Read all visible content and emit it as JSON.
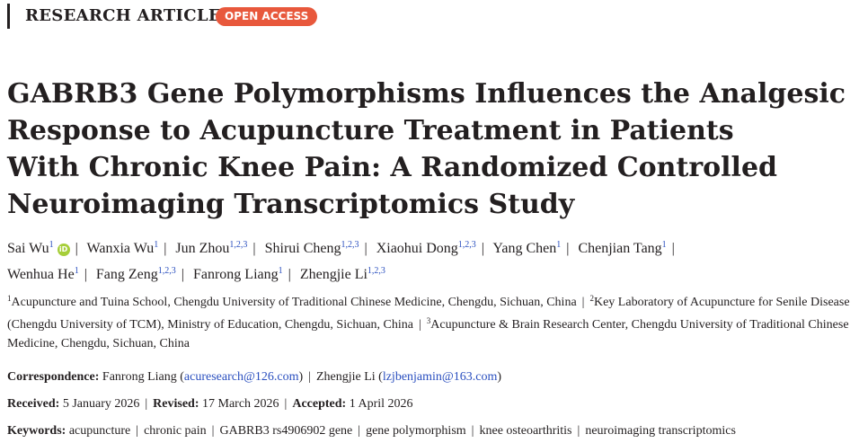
{
  "header": {
    "article_type": "RESEARCH ARTICLE",
    "access_badge": "OPEN ACCESS"
  },
  "title_lines": [
    "GABRB3 Gene Polymorphisms Influences the Analgesic",
    "Response to Acupuncture Treatment in Patients",
    "With Chronic Knee Pain: A Randomized Controlled",
    "Neuroimaging Transcriptomics Study"
  ],
  "authors": [
    {
      "name": "Sai Wu",
      "sup": "1",
      "orcid": true
    },
    {
      "name": "Wanxia Wu",
      "sup": "1"
    },
    {
      "name": "Jun Zhou",
      "sup": "1,2,3"
    },
    {
      "name": "Shirui Cheng",
      "sup": "1,2,3"
    },
    {
      "name": "Xiaohui Dong",
      "sup": "1,2,3"
    },
    {
      "name": "Yang Chen",
      "sup": "1"
    },
    {
      "name": "Chenjian Tang",
      "sup": "1"
    },
    {
      "name": "Wenhua He",
      "sup": "1"
    },
    {
      "name": "Fang Zeng",
      "sup": "1,2,3"
    },
    {
      "name": "Fanrong Liang",
      "sup": "1"
    },
    {
      "name": "Zhengjie Li",
      "sup": "1,2,3"
    }
  ],
  "orcid_label": "iD",
  "affiliations": [
    {
      "num": "1",
      "text": "Acupuncture and Tuina School, Chengdu University of Traditional Chinese Medicine, Chengdu, Sichuan, China"
    },
    {
      "num": "2",
      "text": "Key Laboratory of Acupuncture for Senile Disease (Chengdu University of TCM), Ministry of Education, Chengdu, Sichuan, China"
    },
    {
      "num": "3",
      "text": "Acupuncture & Brain Research Center, Chengdu University of Traditional Chinese Medicine, Chengdu, Sichuan, China"
    }
  ],
  "correspondence": {
    "label": "Correspondence:",
    "entries": [
      {
        "name": "Fanrong Liang",
        "email": "acuresearch@126.com"
      },
      {
        "name": "Zhengjie Li",
        "email": "lzjbenjamin@163.com"
      }
    ]
  },
  "dates": [
    {
      "label": "Received:",
      "value": "5 January 2026"
    },
    {
      "label": "Revised:",
      "value": "17 March 2026"
    },
    {
      "label": "Accepted:",
      "value": "1 April 2026"
    }
  ],
  "keywords": {
    "label": "Keywords:",
    "items": [
      "acupuncture",
      "chronic pain",
      "GABRB3 rs4906902 gene",
      "gene polymorphism",
      "knee osteoarthritis",
      "neuroimaging transcriptomics"
    ]
  },
  "colors": {
    "badge": "#e8583c",
    "link": "#2a4fbf",
    "orcid": "#a6ce39",
    "text": "#231f20"
  }
}
